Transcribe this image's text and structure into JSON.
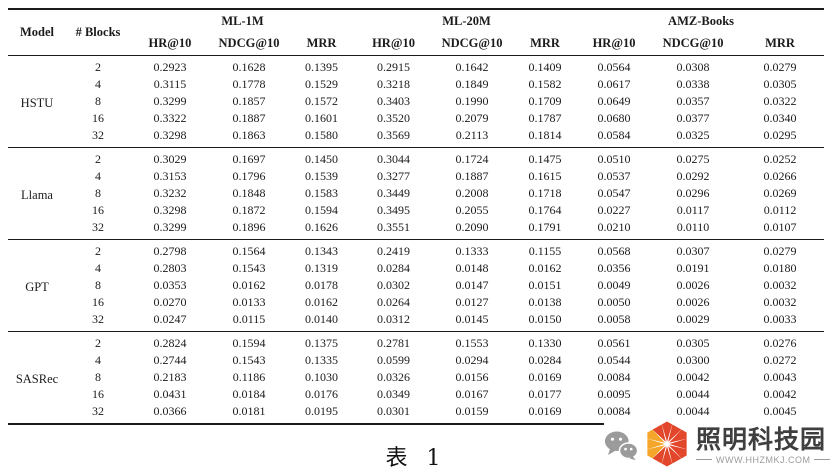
{
  "table": {
    "caption": "表 1",
    "header": {
      "model": "Model",
      "blocks": "# Blocks",
      "groups": [
        {
          "label": "ML-1M",
          "metrics": [
            "HR@10",
            "NDCG@10",
            "MRR"
          ]
        },
        {
          "label": "ML-20M",
          "metrics": [
            "HR@10",
            "NDCG@10",
            "MRR"
          ]
        },
        {
          "label": "AMZ-Books",
          "metrics": [
            "HR@10",
            "NDCG@10",
            "MRR"
          ]
        }
      ]
    },
    "body": [
      {
        "model": "HSTU",
        "rows": [
          {
            "blocks": "2",
            "values": [
              "0.2923",
              "0.1628",
              "0.1395",
              "0.2915",
              "0.1642",
              "0.1409",
              "0.0564",
              "0.0308",
              "0.0279"
            ]
          },
          {
            "blocks": "4",
            "values": [
              "0.3115",
              "0.1778",
              "0.1529",
              "0.3218",
              "0.1849",
              "0.1582",
              "0.0617",
              "0.0338",
              "0.0305"
            ]
          },
          {
            "blocks": "8",
            "values": [
              "0.3299",
              "0.1857",
              "0.1572",
              "0.3403",
              "0.1990",
              "0.1709",
              "0.0649",
              "0.0357",
              "0.0322"
            ]
          },
          {
            "blocks": "16",
            "values": [
              "0.3322",
              "0.1887",
              "0.1601",
              "0.3520",
              "0.2079",
              "0.1787",
              "0.0680",
              "0.0377",
              "0.0340"
            ]
          },
          {
            "blocks": "32",
            "values": [
              "0.3298",
              "0.1863",
              "0.1580",
              "0.3569",
              "0.2113",
              "0.1814",
              "0.0584",
              "0.0325",
              "0.0295"
            ]
          }
        ]
      },
      {
        "model": "Llama",
        "rows": [
          {
            "blocks": "2",
            "values": [
              "0.3029",
              "0.1697",
              "0.1450",
              "0.3044",
              "0.1724",
              "0.1475",
              "0.0510",
              "0.0275",
              "0.0252"
            ]
          },
          {
            "blocks": "4",
            "values": [
              "0.3153",
              "0.1796",
              "0.1539",
              "0.3277",
              "0.1887",
              "0.1615",
              "0.0537",
              "0.0292",
              "0.0266"
            ]
          },
          {
            "blocks": "8",
            "values": [
              "0.3232",
              "0.1848",
              "0.1583",
              "0.3449",
              "0.2008",
              "0.1718",
              "0.0547",
              "0.0296",
              "0.0269"
            ]
          },
          {
            "blocks": "16",
            "values": [
              "0.3298",
              "0.1872",
              "0.1594",
              "0.3495",
              "0.2055",
              "0.1764",
              "0.0227",
              "0.0117",
              "0.0112"
            ]
          },
          {
            "blocks": "32",
            "values": [
              "0.3299",
              "0.1896",
              "0.1626",
              "0.3551",
              "0.2090",
              "0.1791",
              "0.0210",
              "0.0110",
              "0.0107"
            ]
          }
        ]
      },
      {
        "model": "GPT",
        "rows": [
          {
            "blocks": "2",
            "values": [
              "0.2798",
              "0.1564",
              "0.1343",
              "0.2419",
              "0.1333",
              "0.1155",
              "0.0568",
              "0.0307",
              "0.0279"
            ]
          },
          {
            "blocks": "4",
            "values": [
              "0.2803",
              "0.1543",
              "0.1319",
              "0.0284",
              "0.0148",
              "0.0162",
              "0.0356",
              "0.0191",
              "0.0180"
            ]
          },
          {
            "blocks": "8",
            "values": [
              "0.0353",
              "0.0162",
              "0.0178",
              "0.0302",
              "0.0147",
              "0.0151",
              "0.0049",
              "0.0026",
              "0.0032"
            ]
          },
          {
            "blocks": "16",
            "values": [
              "0.0270",
              "0.0133",
              "0.0162",
              "0.0264",
              "0.0127",
              "0.0138",
              "0.0050",
              "0.0026",
              "0.0032"
            ]
          },
          {
            "blocks": "32",
            "values": [
              "0.0247",
              "0.0115",
              "0.0140",
              "0.0312",
              "0.0145",
              "0.0150",
              "0.0058",
              "0.0029",
              "0.0033"
            ]
          }
        ]
      },
      {
        "model": "SASRec",
        "rows": [
          {
            "blocks": "2",
            "values": [
              "0.2824",
              "0.1594",
              "0.1375",
              "0.2781",
              "0.1553",
              "0.1330",
              "0.0561",
              "0.0305",
              "0.0276"
            ]
          },
          {
            "blocks": "4",
            "values": [
              "0.2744",
              "0.1543",
              "0.1335",
              "0.0599",
              "0.0294",
              "0.0284",
              "0.0544",
              "0.0300",
              "0.0272"
            ]
          },
          {
            "blocks": "8",
            "values": [
              "0.2183",
              "0.1186",
              "0.1030",
              "0.0326",
              "0.0156",
              "0.0169",
              "0.0084",
              "0.0042",
              "0.0043"
            ]
          },
          {
            "blocks": "16",
            "values": [
              "0.0431",
              "0.0184",
              "0.0176",
              "0.0349",
              "0.0167",
              "0.0177",
              "0.0095",
              "0.0044",
              "0.0042"
            ]
          },
          {
            "blocks": "32",
            "values": [
              "0.0366",
              "0.0181",
              "0.0195",
              "0.0301",
              "0.0159",
              "0.0169",
              "0.0084",
              "0.0044",
              "0.0045"
            ]
          }
        ]
      }
    ]
  },
  "watermark": {
    "brand": "照明科技园",
    "url": "WWW.HHZMKJ.COM",
    "colors": {
      "brand_text": "#3f3f3f",
      "url_text": "#9b9b9b",
      "wechat_gray": "#9b9b9b",
      "logo_red": "#e2462b",
      "logo_orange": "#f4a62a"
    }
  }
}
